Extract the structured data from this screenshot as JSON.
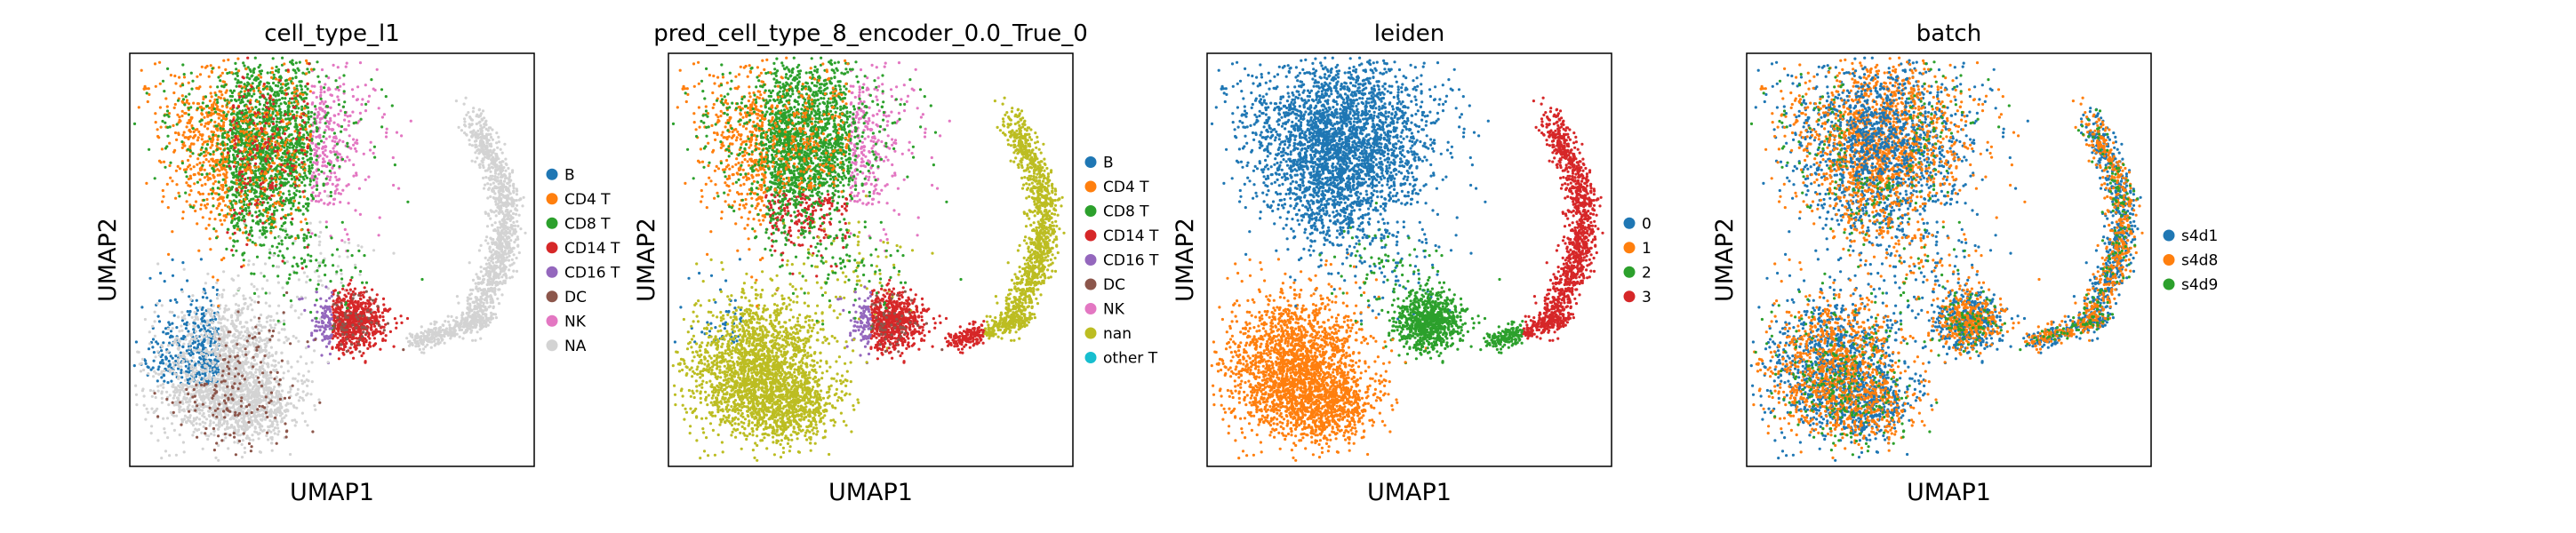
{
  "figure": {
    "background": "#ffffff"
  },
  "chart_data": [
    {
      "type": "scatter",
      "title": "cell_type_l1",
      "xlabel": "UMAP1",
      "ylabel": "UMAP2",
      "grid": false,
      "legend": "right",
      "legend_entries": [
        {
          "label": "B",
          "color": "#1f77b4"
        },
        {
          "label": "CD4 T",
          "color": "#ff7f0e"
        },
        {
          "label": "CD8 T",
          "color": "#2ca02c"
        },
        {
          "label": "CD14 T",
          "color": "#d62728"
        },
        {
          "label": "CD16 T",
          "color": "#9467bd"
        },
        {
          "label": "DC",
          "color": "#8c564b"
        },
        {
          "label": "NK",
          "color": "#e377c2"
        },
        {
          "label": "NA",
          "color": "#d3d3d3"
        }
      ]
    },
    {
      "type": "scatter",
      "title": "pred_cell_type_8_encoder_0.0_True_0",
      "xlabel": "UMAP1",
      "ylabel": "UMAP2",
      "grid": false,
      "legend": "right",
      "legend_entries": [
        {
          "label": "B",
          "color": "#1f77b4"
        },
        {
          "label": "CD4 T",
          "color": "#ff7f0e"
        },
        {
          "label": "CD8 T",
          "color": "#2ca02c"
        },
        {
          "label": "CD14 T",
          "color": "#d62728"
        },
        {
          "label": "CD16 T",
          "color": "#9467bd"
        },
        {
          "label": "DC",
          "color": "#8c564b"
        },
        {
          "label": "NK",
          "color": "#e377c2"
        },
        {
          "label": "nan",
          "color": "#bcbd22"
        },
        {
          "label": "other T",
          "color": "#17becf"
        }
      ]
    },
    {
      "type": "scatter",
      "title": "leiden",
      "xlabel": "UMAP1",
      "ylabel": "UMAP2",
      "grid": false,
      "legend": "right",
      "legend_entries": [
        {
          "label": "0",
          "color": "#1f77b4"
        },
        {
          "label": "1",
          "color": "#ff7f0e"
        },
        {
          "label": "2",
          "color": "#2ca02c"
        },
        {
          "label": "3",
          "color": "#d62728"
        }
      ]
    },
    {
      "type": "scatter",
      "title": "batch",
      "xlabel": "UMAP1",
      "ylabel": "UMAP2",
      "grid": false,
      "legend": "right",
      "legend_entries": [
        {
          "label": "s4d1",
          "color": "#1f77b4"
        },
        {
          "label": "s4d8",
          "color": "#ff7f0e"
        },
        {
          "label": "s4d9",
          "color": "#2ca02c"
        }
      ]
    }
  ]
}
